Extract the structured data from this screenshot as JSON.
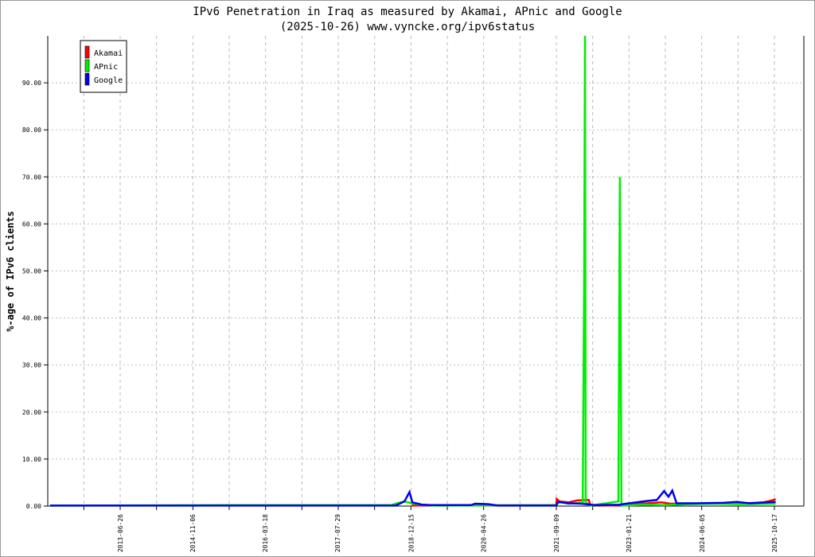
{
  "chart_data": {
    "type": "line",
    "title": "IPv6 Penetration in Iraq as measured by Akamai, APnic and Google",
    "subtitle": "(2025-10-26) www.vyncke.org/ipv6status",
    "xlabel": "",
    "ylabel": "%-age of IPv6 clients",
    "ylim": [
      0,
      100
    ],
    "xlim": [
      "2012-01-30",
      "2026-01-20"
    ],
    "yticks": [
      "0.00",
      "10.00",
      "20.00",
      "30.00",
      "40.00",
      "50.00",
      "60.00",
      "70.00",
      "80.00",
      "90.00"
    ],
    "xticks": [
      "2013-06-26",
      "2014-11-06",
      "2016-03-18",
      "2017-07-29",
      "2018-12-15",
      "2020-04-26",
      "2021-09-09",
      "2023-01-21",
      "2024-06-05",
      "2025-10-17"
    ],
    "grid": true,
    "legend": "top-left",
    "series": [
      {
        "name": "Akamai",
        "color": "#ff0000",
        "points": [
          [
            "2018-12-20",
            0.1
          ],
          [
            "2019-06-01",
            0.2
          ],
          [
            "2019-06-10",
            0.1
          ],
          [
            "2021-09-09",
            0.2
          ],
          [
            "2021-09-12",
            1.5
          ],
          [
            "2021-10-01",
            1.0
          ],
          [
            "2021-12-01",
            0.8
          ],
          [
            "2022-02-01",
            1.2
          ],
          [
            "2022-04-20",
            1.3
          ],
          [
            "2022-05-01",
            0.2
          ],
          [
            "2022-11-01",
            0.1
          ],
          [
            "2022-12-15",
            0.4
          ],
          [
            "2023-06-01",
            0.6
          ],
          [
            "2023-09-01",
            0.8
          ],
          [
            "2023-11-01",
            0.5
          ],
          [
            "2024-03-01",
            0.5
          ],
          [
            "2024-09-01",
            0.6
          ],
          [
            "2025-03-01",
            0.5
          ],
          [
            "2025-08-01",
            0.8
          ],
          [
            "2025-10-01",
            1.2
          ],
          [
            "2025-10-26",
            1.5
          ]
        ]
      },
      {
        "name": "APnic",
        "color": "#00ee00",
        "points": [
          [
            "2012-03-01",
            0.1
          ],
          [
            "2015-06-01",
            0.2
          ],
          [
            "2018-08-01",
            0.2
          ],
          [
            "2018-09-01",
            0.5
          ],
          [
            "2018-11-01",
            1.0
          ],
          [
            "2018-12-20",
            0.6
          ],
          [
            "2019-03-01",
            0.3
          ],
          [
            "2019-06-01",
            0.1
          ],
          [
            "2021-09-09",
            0.2
          ],
          [
            "2021-10-01",
            0.9
          ],
          [
            "2021-12-01",
            0.5
          ],
          [
            "2022-03-10",
            0.7
          ],
          [
            "2022-03-20",
            50
          ],
          [
            "2022-03-25",
            100
          ],
          [
            "2022-03-30",
            0.8
          ],
          [
            "2022-05-01",
            0.1
          ],
          [
            "2022-11-10",
            1.0
          ],
          [
            "2022-11-20",
            70
          ],
          [
            "2022-11-26",
            35
          ],
          [
            "2022-12-01",
            0.1
          ],
          [
            "2023-05-01",
            0.3
          ],
          [
            "2023-10-01",
            0.2
          ],
          [
            "2024-03-01",
            0.4
          ],
          [
            "2024-09-01",
            0.5
          ],
          [
            "2025-03-01",
            0.4
          ],
          [
            "2025-10-26",
            0.5
          ]
        ]
      },
      {
        "name": "Google",
        "color": "#0000ee",
        "points": [
          [
            "2012-03-01",
            0.1
          ],
          [
            "2018-09-01",
            0.1
          ],
          [
            "2018-11-01",
            1.0
          ],
          [
            "2018-12-05",
            3.0
          ],
          [
            "2018-12-25",
            0.8
          ],
          [
            "2019-03-01",
            0.3
          ],
          [
            "2019-05-01",
            0.2
          ],
          [
            "2020-02-01",
            0.2
          ],
          [
            "2020-03-01",
            0.5
          ],
          [
            "2020-06-01",
            0.4
          ],
          [
            "2020-08-01",
            0.1
          ],
          [
            "2021-09-09",
            0.1
          ],
          [
            "2021-09-20",
            0.9
          ],
          [
            "2021-12-01",
            0.6
          ],
          [
            "2022-03-01",
            0.5
          ],
          [
            "2022-06-01",
            0.2
          ],
          [
            "2022-11-20",
            0.3
          ],
          [
            "2023-01-01",
            0.5
          ],
          [
            "2023-05-01",
            1.0
          ],
          [
            "2023-08-01",
            1.3
          ],
          [
            "2023-09-20",
            3.2
          ],
          [
            "2023-10-20",
            2.0
          ],
          [
            "2023-11-15",
            3.3
          ],
          [
            "2023-12-15",
            0.6
          ],
          [
            "2024-05-01",
            0.6
          ],
          [
            "2024-11-01",
            0.7
          ],
          [
            "2025-02-01",
            0.9
          ],
          [
            "2025-05-01",
            0.6
          ],
          [
            "2025-10-26",
            0.9
          ]
        ]
      }
    ]
  }
}
